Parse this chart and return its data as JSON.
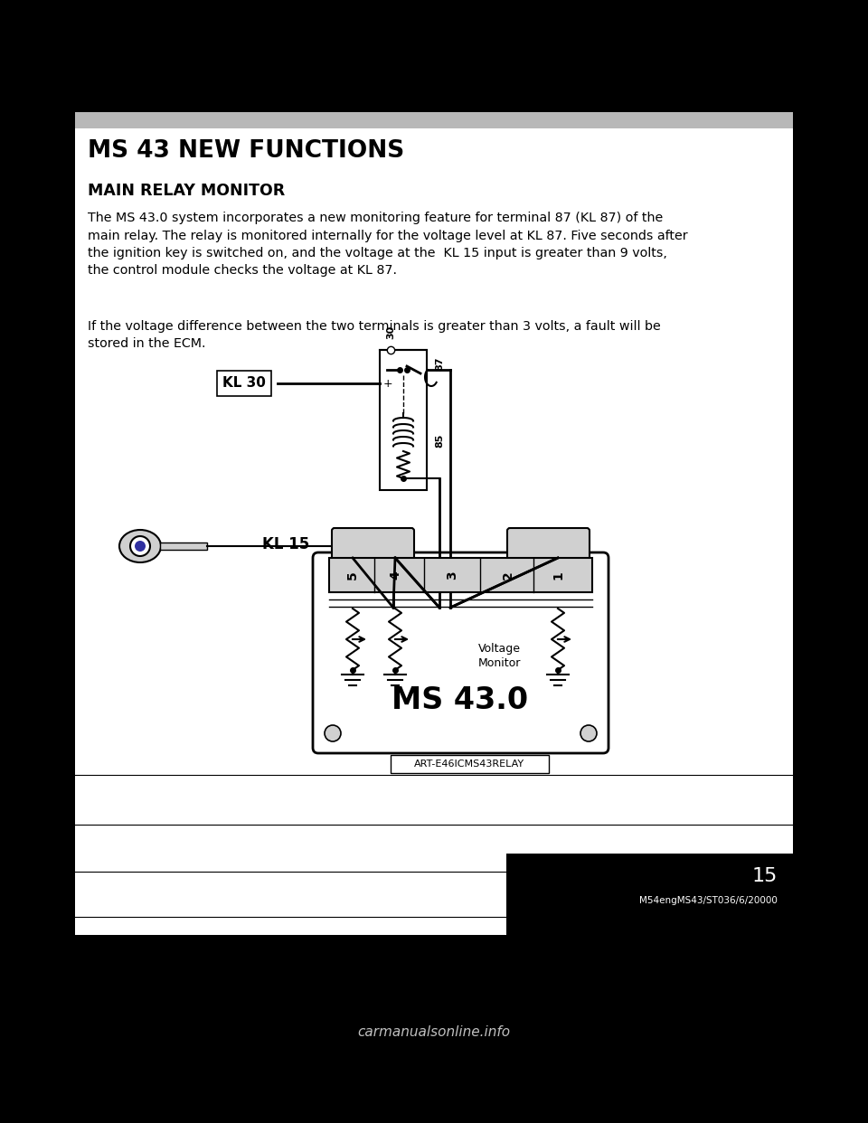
{
  "title": "MS 43 NEW FUNCTIONS",
  "subtitle": "MAIN RELAY MONITOR",
  "paragraph1": "The MS 43.0 system incorporates a new monitoring feature for terminal 87 (KL 87) of the\nmain relay. The relay is monitored internally for the voltage level at KL 87. Five seconds after\nthe ignition key is switched on, and the voltage at the  KL 15 input is greater than 9 volts,\nthe control module checks the voltage at KL 87.",
  "paragraph2": "If the voltage difference between the two terminals is greater than 3 volts, a fault will be\nstored in the ECM.",
  "art_label": "ART-E46ICMS43RELAY",
  "page_number": "15",
  "footer_text": "M54engMS43/ST036/6/20000",
  "bg_color": "#ffffff",
  "black": "#000000",
  "gray_bar": "#b8b8b8",
  "light_gray": "#d0d0d0",
  "med_gray": "#a0a0a0"
}
